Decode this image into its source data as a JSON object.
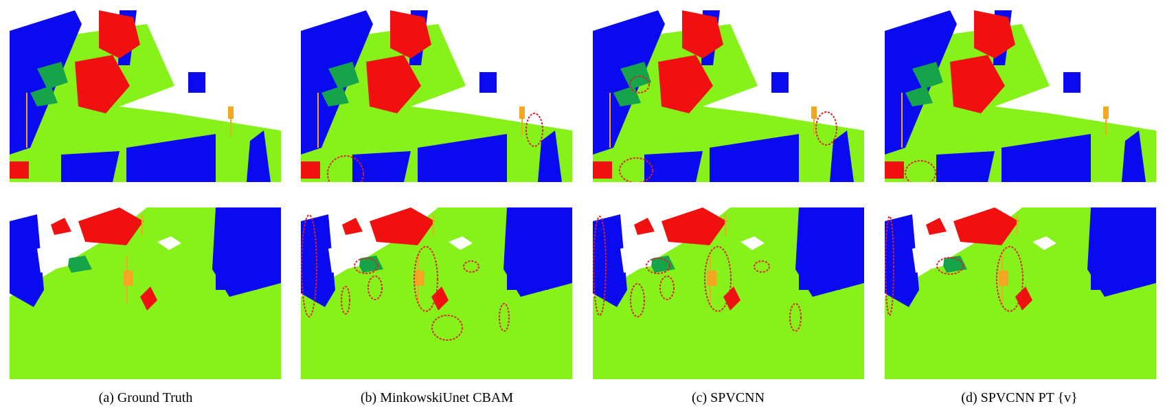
{
  "figure": {
    "captions": [
      "(a) Ground Truth",
      "(b) MinkowskiUnet CBAM",
      "(c) SPVCNN",
      "(d) SPVCNN PT {v}"
    ]
  },
  "colors": {
    "building": "#0a0af0",
    "road": "#86f21a",
    "vegetation": "#f01010",
    "car": "#16a34a",
    "pole": "#f5a623",
    "error_marker": "#e02020"
  }
}
